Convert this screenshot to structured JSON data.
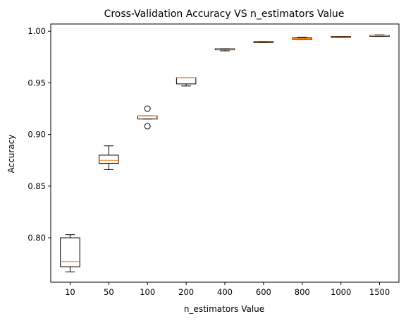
{
  "chart_data": {
    "type": "boxplot",
    "title": "Cross-Validation Accuracy VS n_estimators Value",
    "xlabel": "n_estimators Value",
    "ylabel": "Accuracy",
    "ylim": [
      0.757,
      1.007
    ],
    "yticks": [
      "0.80",
      "0.85",
      "0.90",
      "0.95",
      "1.00"
    ],
    "ytick_values": [
      0.8,
      0.85,
      0.9,
      0.95,
      1.0
    ],
    "grid": false,
    "colors": {
      "box": "#000000",
      "median": "#ff7f0e",
      "axis": "#000000"
    },
    "categories": [
      "10",
      "50",
      "100",
      "200",
      "400",
      "600",
      "800",
      "1000",
      "1500"
    ],
    "boxes": [
      {
        "whislo": 0.767,
        "q1": 0.772,
        "med": 0.777,
        "q3": 0.8,
        "whishi": 0.803,
        "fliers": []
      },
      {
        "whislo": 0.866,
        "q1": 0.872,
        "med": 0.875,
        "q3": 0.88,
        "whishi": 0.889,
        "fliers": []
      },
      {
        "whislo": 0.915,
        "q1": 0.915,
        "med": 0.918,
        "q3": 0.918,
        "whishi": 0.918,
        "fliers": [
          0.925,
          0.908
        ]
      },
      {
        "whislo": 0.947,
        "q1": 0.949,
        "med": 0.955,
        "q3": 0.955,
        "whishi": 0.955,
        "fliers": []
      },
      {
        "whislo": 0.981,
        "q1": 0.982,
        "med": 0.982,
        "q3": 0.983,
        "whishi": 0.983,
        "fliers": []
      },
      {
        "whislo": 0.989,
        "q1": 0.989,
        "med": 0.9895,
        "q3": 0.99,
        "whishi": 0.99,
        "fliers": []
      },
      {
        "whislo": 0.992,
        "q1": 0.992,
        "med": 0.993,
        "q3": 0.9935,
        "whishi": 0.994,
        "fliers": []
      },
      {
        "whislo": 0.994,
        "q1": 0.994,
        "med": 0.9945,
        "q3": 0.995,
        "whishi": 0.995,
        "fliers": []
      },
      {
        "whislo": 0.995,
        "q1": 0.995,
        "med": 0.996,
        "q3": 0.996,
        "whishi": 0.9965,
        "fliers": []
      }
    ]
  }
}
